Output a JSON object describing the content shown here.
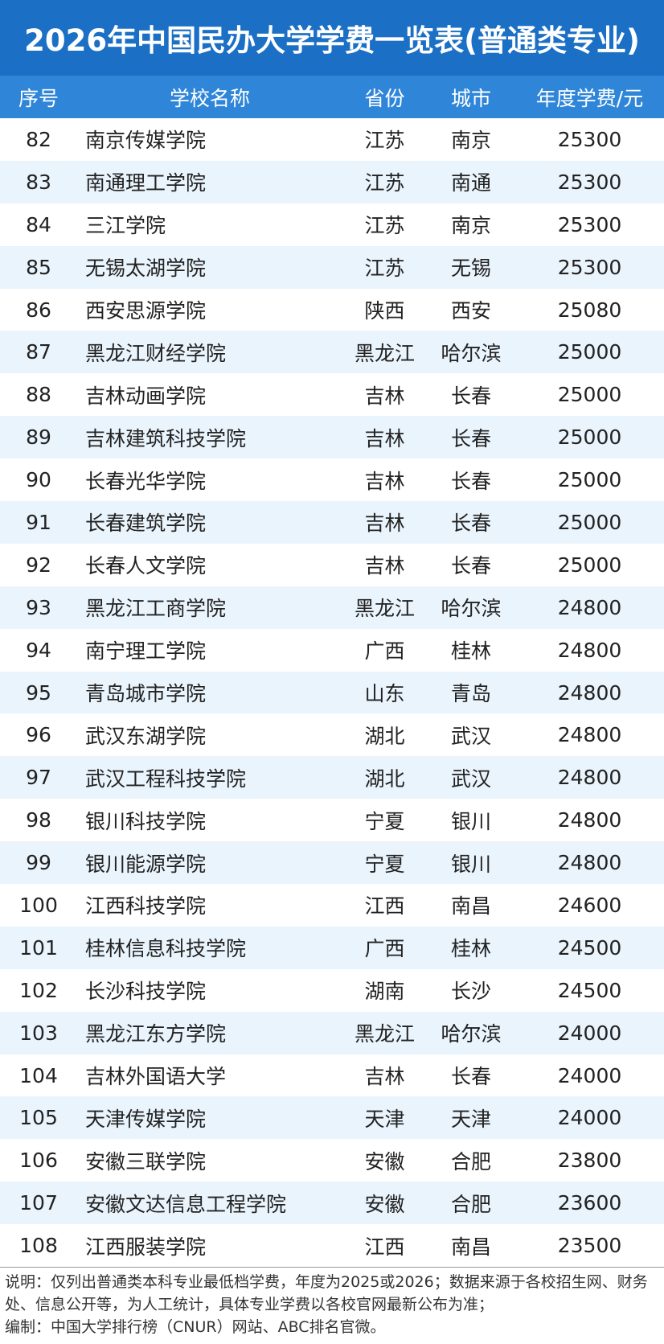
{
  "header": {
    "title": "2026年中国民办大学学费一览表(普通类专业)"
  },
  "table": {
    "columns": [
      "序号",
      "学校名称",
      "省份",
      "城市",
      "年度学费/元"
    ],
    "rows": [
      [
        82,
        "南京传媒学院",
        "江苏",
        "南京",
        25300
      ],
      [
        83,
        "南通理工学院",
        "江苏",
        "南通",
        25300
      ],
      [
        84,
        "三江学院",
        "江苏",
        "南京",
        25300
      ],
      [
        85,
        "无锡太湖学院",
        "江苏",
        "无锡",
        25300
      ],
      [
        86,
        "西安思源学院",
        "陕西",
        "西安",
        25080
      ],
      [
        87,
        "黑龙江财经学院",
        "黑龙江",
        "哈尔滨",
        25000
      ],
      [
        88,
        "吉林动画学院",
        "吉林",
        "长春",
        25000
      ],
      [
        89,
        "吉林建筑科技学院",
        "吉林",
        "长春",
        25000
      ],
      [
        90,
        "长春光华学院",
        "吉林",
        "长春",
        25000
      ],
      [
        91,
        "长春建筑学院",
        "吉林",
        "长春",
        25000
      ],
      [
        92,
        "长春人文学院",
        "吉林",
        "长春",
        25000
      ],
      [
        93,
        "黑龙江工商学院",
        "黑龙江",
        "哈尔滨",
        24800
      ],
      [
        94,
        "南宁理工学院",
        "广西",
        "桂林",
        24800
      ],
      [
        95,
        "青岛城市学院",
        "山东",
        "青岛",
        24800
      ],
      [
        96,
        "武汉东湖学院",
        "湖北",
        "武汉",
        24800
      ],
      [
        97,
        "武汉工程科技学院",
        "湖北",
        "武汉",
        24800
      ],
      [
        98,
        "银川科技学院",
        "宁夏",
        "银川",
        24800
      ],
      [
        99,
        "银川能源学院",
        "宁夏",
        "银川",
        24800
      ],
      [
        100,
        "江西科技学院",
        "江西",
        "南昌",
        24600
      ],
      [
        101,
        "桂林信息科技学院",
        "广西",
        "桂林",
        24500
      ],
      [
        102,
        "长沙科技学院",
        "湖南",
        "长沙",
        24500
      ],
      [
        103,
        "黑龙江东方学院",
        "黑龙江",
        "哈尔滨",
        24000
      ],
      [
        104,
        "吉林外国语大学",
        "吉林",
        "长春",
        24000
      ],
      [
        105,
        "天津传媒学院",
        "天津",
        "天津",
        24000
      ],
      [
        106,
        "安徽三联学院",
        "安徽",
        "合肥",
        23800
      ],
      [
        107,
        "安徽文达信息工程学院",
        "安徽",
        "合肥",
        23600
      ],
      [
        108,
        "江西服装学院",
        "江西",
        "南昌",
        23500
      ]
    ]
  },
  "footer": {
    "notes": [
      "说明：仅列出普通类本科专业最低档学费，年度为2025或2026；数据来源于各校招生网、财务处、信息公开等，为人工统计，具体专业学费以各校官网最新公布为准；",
      "编制：中国大学排行榜（CNUR）网站、ABC排名官微。"
    ]
  }
}
